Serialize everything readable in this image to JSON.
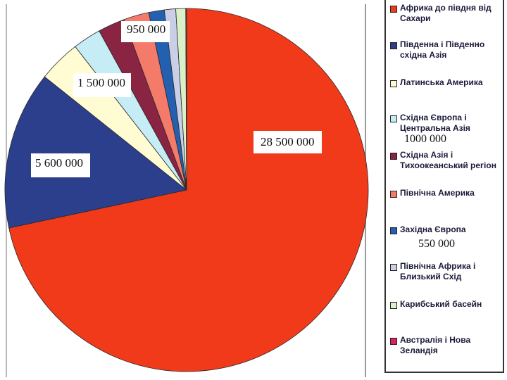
{
  "chart_data": {
    "type": "pie",
    "categories": [
      "Африка до півдня від Сахари",
      "Південна і Південно східна Азія",
      "Латинська Америка",
      "Східна Європа і Центральна Азія",
      "Східна Азія і Тихоокеанський регіон",
      "Північна Америка",
      "Західна Європа",
      "Північна Африка і Близький Схід",
      "Карибський басейн",
      "Австралія і Нова Зеландія"
    ],
    "values": [
      28500000,
      5600000,
      1500000,
      1000000,
      950000,
      900000,
      550000,
      400000,
      350000,
      30000
    ],
    "colors": [
      "#f03a1a",
      "#2b3f8c",
      "#fffbd2",
      "#c6ecf5",
      "#8a2443",
      "#f47a6a",
      "#2460b0",
      "#c9cfe6",
      "#d9f0c8",
      "#d8245a"
    ],
    "labels": [
      {
        "text": "28 500 000"
      },
      {
        "text": "5 600 000"
      },
      {
        "text": "1 500 000"
      },
      {
        "text": "950 000"
      }
    ],
    "legend_values": [
      {
        "text": "1000 000"
      },
      {
        "text": "550 000"
      }
    ],
    "legend_position": "right"
  }
}
